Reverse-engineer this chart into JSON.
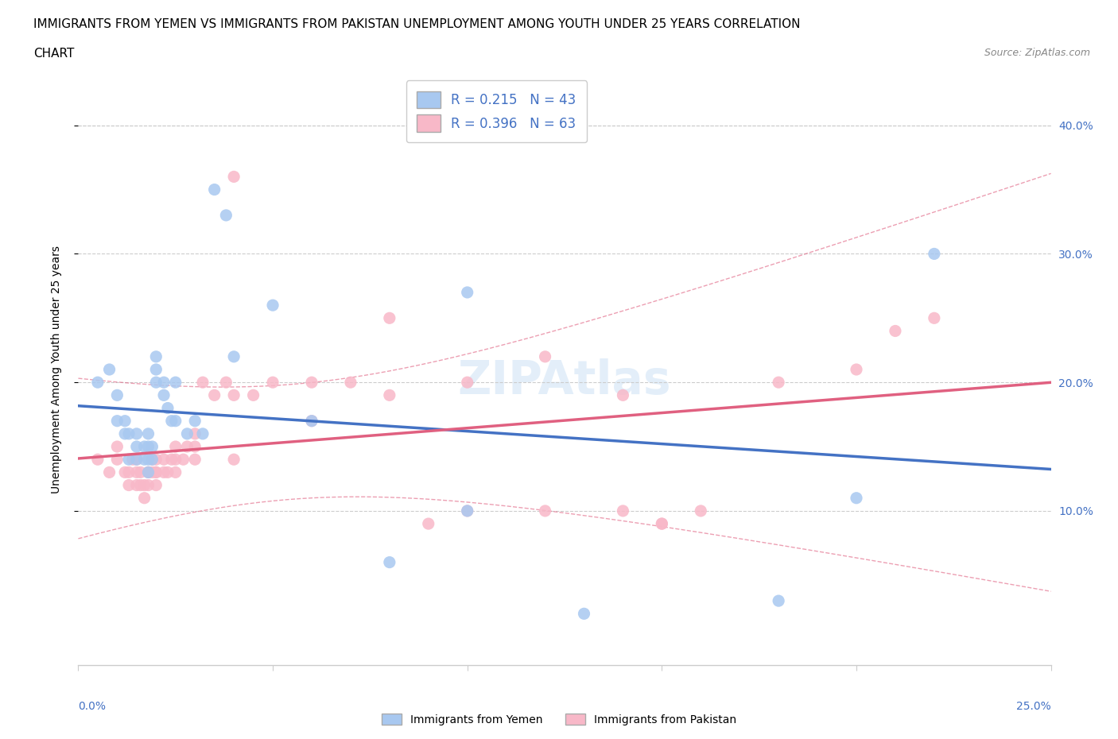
{
  "title_line1": "IMMIGRANTS FROM YEMEN VS IMMIGRANTS FROM PAKISTAN UNEMPLOYMENT AMONG YOUTH UNDER 25 YEARS CORRELATION",
  "title_line2": "CHART",
  "source": "Source: ZipAtlas.com",
  "ylabel": "Unemployment Among Youth under 25 years",
  "ytick_labels": [
    "10.0%",
    "20.0%",
    "30.0%",
    "40.0%"
  ],
  "ytick_values": [
    0.1,
    0.2,
    0.3,
    0.4
  ],
  "xlim": [
    0.0,
    0.25
  ],
  "ylim": [
    -0.02,
    0.44
  ],
  "color_yemen": "#a8c8f0",
  "color_pakistan": "#f8b8c8",
  "color_line_yemen": "#4472c4",
  "color_line_pakistan": "#e06080",
  "watermark": "ZIPAtlas",
  "yemen_x": [
    0.005,
    0.008,
    0.01,
    0.01,
    0.012,
    0.012,
    0.013,
    0.013,
    0.015,
    0.015,
    0.015,
    0.017,
    0.017,
    0.018,
    0.018,
    0.018,
    0.018,
    0.019,
    0.019,
    0.02,
    0.02,
    0.02,
    0.022,
    0.022,
    0.023,
    0.024,
    0.025,
    0.025,
    0.028,
    0.03,
    0.032,
    0.035,
    0.038,
    0.04,
    0.05,
    0.06,
    0.08,
    0.1,
    0.13,
    0.18,
    0.2,
    0.22,
    0.1
  ],
  "yemen_y": [
    0.2,
    0.21,
    0.17,
    0.19,
    0.16,
    0.17,
    0.14,
    0.16,
    0.14,
    0.15,
    0.16,
    0.14,
    0.15,
    0.13,
    0.14,
    0.15,
    0.16,
    0.14,
    0.15,
    0.2,
    0.21,
    0.22,
    0.19,
    0.2,
    0.18,
    0.17,
    0.2,
    0.17,
    0.16,
    0.17,
    0.16,
    0.35,
    0.33,
    0.22,
    0.26,
    0.17,
    0.06,
    0.1,
    0.02,
    0.03,
    0.11,
    0.3,
    0.27
  ],
  "pakistan_x": [
    0.005,
    0.008,
    0.01,
    0.01,
    0.012,
    0.013,
    0.013,
    0.014,
    0.015,
    0.015,
    0.015,
    0.016,
    0.016,
    0.017,
    0.017,
    0.018,
    0.018,
    0.018,
    0.019,
    0.019,
    0.02,
    0.02,
    0.02,
    0.02,
    0.022,
    0.022,
    0.023,
    0.024,
    0.025,
    0.025,
    0.025,
    0.027,
    0.028,
    0.03,
    0.03,
    0.03,
    0.032,
    0.035,
    0.038,
    0.04,
    0.04,
    0.045,
    0.05,
    0.06,
    0.07,
    0.08,
    0.09,
    0.1,
    0.12,
    0.14,
    0.15,
    0.15,
    0.18,
    0.2,
    0.21,
    0.22,
    0.04,
    0.06,
    0.08,
    0.1,
    0.12,
    0.14,
    0.16
  ],
  "pakistan_y": [
    0.14,
    0.13,
    0.14,
    0.15,
    0.13,
    0.12,
    0.13,
    0.14,
    0.12,
    0.13,
    0.14,
    0.12,
    0.13,
    0.11,
    0.12,
    0.13,
    0.12,
    0.13,
    0.13,
    0.14,
    0.12,
    0.13,
    0.14,
    0.13,
    0.13,
    0.14,
    0.13,
    0.14,
    0.13,
    0.14,
    0.15,
    0.14,
    0.15,
    0.14,
    0.15,
    0.16,
    0.2,
    0.19,
    0.2,
    0.14,
    0.19,
    0.19,
    0.2,
    0.2,
    0.2,
    0.19,
    0.09,
    0.2,
    0.22,
    0.19,
    0.09,
    0.09,
    0.2,
    0.21,
    0.24,
    0.25,
    0.36,
    0.17,
    0.25,
    0.1,
    0.1,
    0.1,
    0.1
  ]
}
